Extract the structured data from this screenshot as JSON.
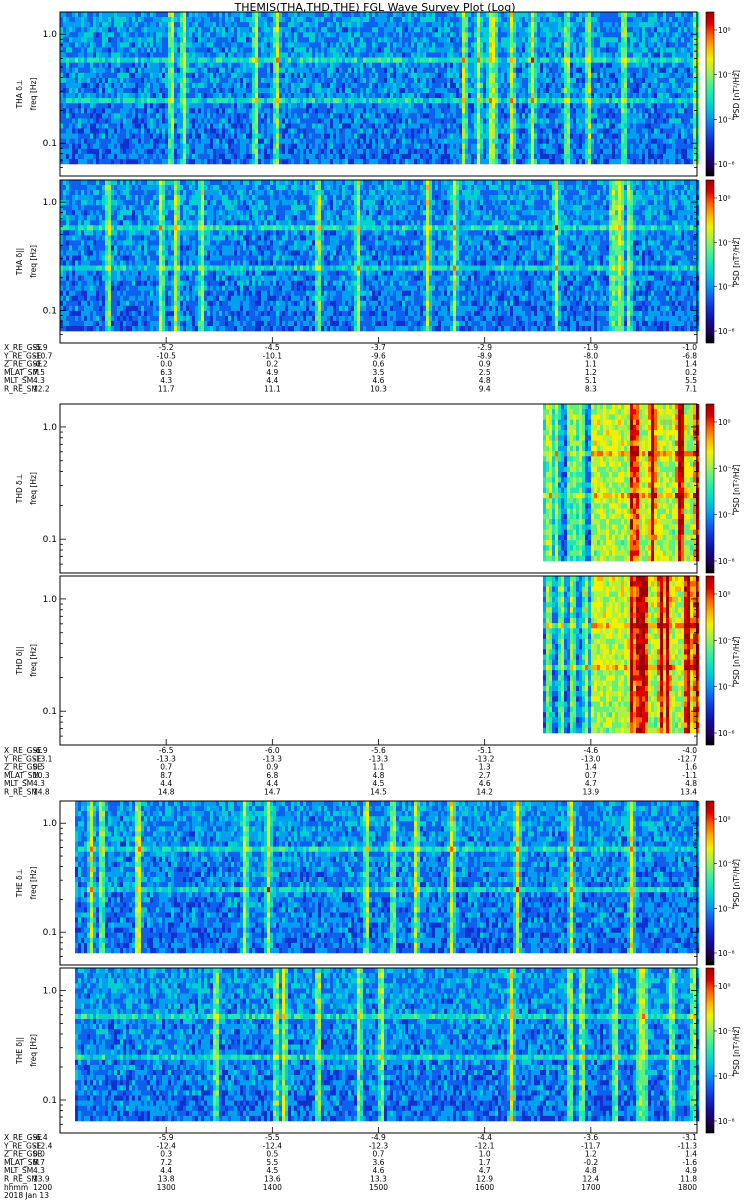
{
  "title": "THEMIS(THA,THD,THE) FGL Wave Survey Plot (Log)",
  "colors": {
    "cmap": [
      "#000000",
      "#200060",
      "#1010a0",
      "#1030d0",
      "#1060f0",
      "#00a0f0",
      "#00d0d0",
      "#20e8b0",
      "#60f080",
      "#b0f040",
      "#f0f000",
      "#ffb000",
      "#ff6000",
      "#e00000",
      "#a00000"
    ]
  },
  "chart_data": {
    "type": "heatmap",
    "probes": [
      {
        "probe": "THA",
        "panels": [
          {
            "ylabel_top": "THA δ⊥",
            "ylabel_bottom": "freq [Hz]",
            "ylim": [
              0.05,
              1.6
            ],
            "yscale": "log",
            "yticks": [
              "1.0",
              "0.1"
            ],
            "colorbar_label": "PSD [nT²/Hz]",
            "colorbar_ticks": [
              "10⁰",
              "10⁻²",
              "10⁻⁴",
              "10⁻⁶"
            ]
          },
          {
            "ylabel_top": "THA δ||",
            "ylabel_bottom": "freq [Hz]",
            "ylim": [
              0.05,
              1.6
            ],
            "yscale": "log",
            "yticks": [
              "1.0",
              "0.1"
            ],
            "colorbar_label": "PSD [nT²/Hz]",
            "colorbar_ticks": [
              "10⁰",
              "10⁻²",
              "10⁻⁴",
              "10⁻⁶"
            ]
          }
        ],
        "ephemeris": [
          {
            "label": "X_RE_GSE",
            "values": [
              "-5.9",
              "-5.2",
              "-4.5",
              "-3.7",
              "-2.9",
              "-1.9",
              "-1.0"
            ]
          },
          {
            "label": "Y_RE_GSE",
            "values": [
              "-10.7",
              "-10.5",
              "-10.1",
              "-9.6",
              "-8.9",
              "-8.0",
              "-6.8"
            ]
          },
          {
            "label": "Z_RE_GSE",
            "values": [
              "-0.2",
              "0.0",
              "0.2",
              "0.6",
              "0.9",
              "1.1",
              "1.4"
            ]
          },
          {
            "label": "MLAT_SM",
            "values": [
              "7.5",
              "6.3",
              "4.9",
              "3.5",
              "2.5",
              "1.2",
              "0.2"
            ]
          },
          {
            "label": "MLT_SM",
            "values": [
              "4.3",
              "4.3",
              "4.4",
              "4.6",
              "4.8",
              "5.1",
              "5.5"
            ]
          },
          {
            "label": "R_RE_SM",
            "values": [
              "12.2",
              "11.7",
              "11.1",
              "10.3",
              "9.4",
              "8.3",
              "7.1"
            ]
          }
        ]
      },
      {
        "probe": "THD",
        "panels": [
          {
            "ylabel_top": "THD δ⊥",
            "ylabel_bottom": "freq [Hz]",
            "ylim": [
              0.05,
              1.6
            ],
            "yscale": "log",
            "yticks": [
              "1.0",
              "0.1"
            ],
            "colorbar_label": "PSD [nT²/Hz]",
            "colorbar_ticks": [
              "10⁰",
              "10⁻²",
              "10⁻⁴",
              "10⁻⁶"
            ]
          },
          {
            "ylabel_top": "THD δ||",
            "ylabel_bottom": "freq [Hz]",
            "ylim": [
              0.05,
              1.6
            ],
            "yscale": "log",
            "yticks": [
              "1.0",
              "0.1"
            ],
            "colorbar_label": "PSD [nT²/Hz]",
            "colorbar_ticks": [
              "10⁰",
              "10⁻²",
              "10⁻⁴",
              "10⁻⁶"
            ]
          }
        ],
        "ephemeris": [
          {
            "label": "X_RE_GSE",
            "values": [
              "-6.9",
              "-6.5",
              "-6.0",
              "-5.6",
              "-5.1",
              "-4.6",
              "-4.0"
            ]
          },
          {
            "label": "Y_RE_GSE",
            "values": [
              "-13.1",
              "-13.3",
              "-13.3",
              "-13.3",
              "-13.2",
              "-13.0",
              "-12.7"
            ]
          },
          {
            "label": "Z_RE_GSE",
            "values": [
              "0.5",
              "0.7",
              "0.9",
              "1.1",
              "1.3",
              "1.4",
              "1.6"
            ]
          },
          {
            "label": "MLAT_SM",
            "values": [
              "10.3",
              "8.7",
              "6.8",
              "4.8",
              "2.7",
              "0.7",
              "-1.1"
            ]
          },
          {
            "label": "MLT_SM",
            "values": [
              "4.3",
              "4.4",
              "4.4",
              "4.5",
              "4.6",
              "4.7",
              "4.8"
            ]
          },
          {
            "label": "R_RE_SM",
            "values": [
              "14.8",
              "14.8",
              "14.7",
              "14.5",
              "14.2",
              "13.9",
              "13.4"
            ]
          }
        ]
      },
      {
        "probe": "THE",
        "panels": [
          {
            "ylabel_top": "THE δ⊥",
            "ylabel_bottom": "freq [Hz]",
            "ylim": [
              0.05,
              1.6
            ],
            "yscale": "log",
            "yticks": [
              "1.0",
              "0.1"
            ],
            "colorbar_label": "PSD [nT²/Hz]",
            "colorbar_ticks": [
              "10⁰",
              "10⁻²",
              "10⁻⁴",
              "10⁻⁶"
            ]
          },
          {
            "ylabel_top": "THE δ||",
            "ylabel_bottom": "freq [Hz]",
            "ylim": [
              0.05,
              1.6
            ],
            "yscale": "log",
            "yticks": [
              "1.0",
              "0.1"
            ],
            "colorbar_label": "PSD [nT²/Hz]",
            "colorbar_ticks": [
              "10⁰",
              "10⁻²",
              "10⁻⁴",
              "10⁻⁶"
            ]
          }
        ],
        "ephemeris": [
          {
            "label": "X_RE_GSE",
            "values": [
              "-6.4",
              "-5.9",
              "-5.5",
              "-4.9",
              "-4.4",
              "-3.6",
              "-3.1"
            ]
          },
          {
            "label": "Y_RE_GSE",
            "values": [
              "-12.4",
              "-12.4",
              "-12.4",
              "-12.3",
              "-12.1",
              "-11.7",
              "-11.3"
            ]
          },
          {
            "label": "Z_RE_GSE",
            "values": [
              "0.0",
              "0.3",
              "0.5",
              "0.7",
              "1.0",
              "1.2",
              "1.4"
            ]
          },
          {
            "label": "MLAT_SM",
            "values": [
              "8.7",
              "7.2",
              "5.5",
              "3.6",
              "1.7",
              "-0.2",
              "-1.6"
            ]
          },
          {
            "label": "MLT_SM",
            "values": [
              "4.3",
              "4.4",
              "4.5",
              "4.6",
              "4.7",
              "4.8",
              "4.9"
            ]
          },
          {
            "label": "R_RE_SM",
            "values": [
              "13.9",
              "13.8",
              "13.6",
              "13.3",
              "12.9",
              "12.4",
              "11.8"
            ]
          },
          {
            "label": "hhmm",
            "values": [
              "1200",
              "1300",
              "1400",
              "1500",
              "1600",
              "1700",
              "1800"
            ]
          },
          {
            "label": "2018 Jan 13",
            "values": []
          }
        ]
      }
    ]
  }
}
